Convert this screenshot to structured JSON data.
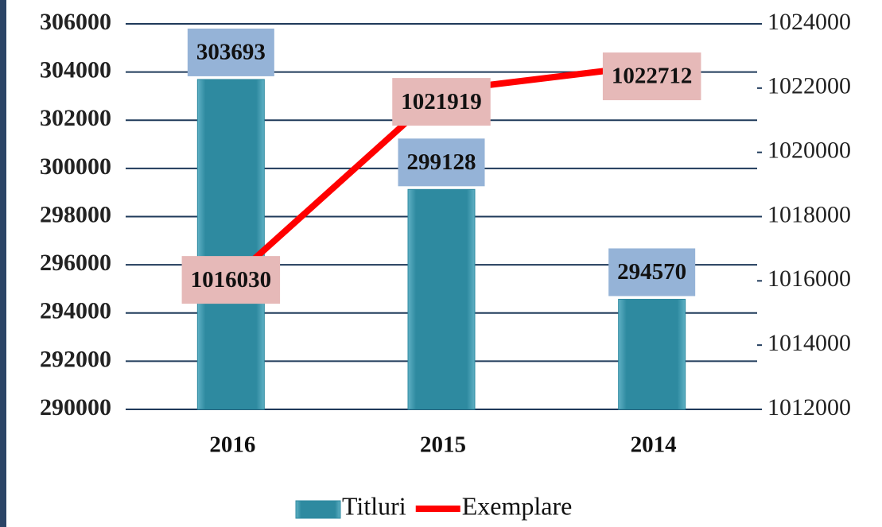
{
  "chart_data": {
    "type": "bar",
    "categories": [
      "2016",
      "2015",
      "2014"
    ],
    "series": [
      {
        "name": "Titluri",
        "color": "#2e8aa0",
        "values": [
          303693,
          299128,
          294570
        ]
      },
      {
        "name": "Exemplare",
        "color": "#ff0000",
        "type": "line",
        "axis": "y2",
        "values": [
          1016030,
          1021919,
          1022712
        ]
      }
    ],
    "ylim": [
      290000,
      306000
    ],
    "yticks": [
      290000,
      292000,
      294000,
      296000,
      298000,
      300000,
      302000,
      304000,
      306000
    ],
    "y2lim": [
      1012000,
      1024000
    ],
    "y2ticks": [
      1012000,
      1014000,
      1016000,
      1018000,
      1020000,
      1022000,
      1024000
    ],
    "grid": true,
    "legend": "bottom"
  }
}
